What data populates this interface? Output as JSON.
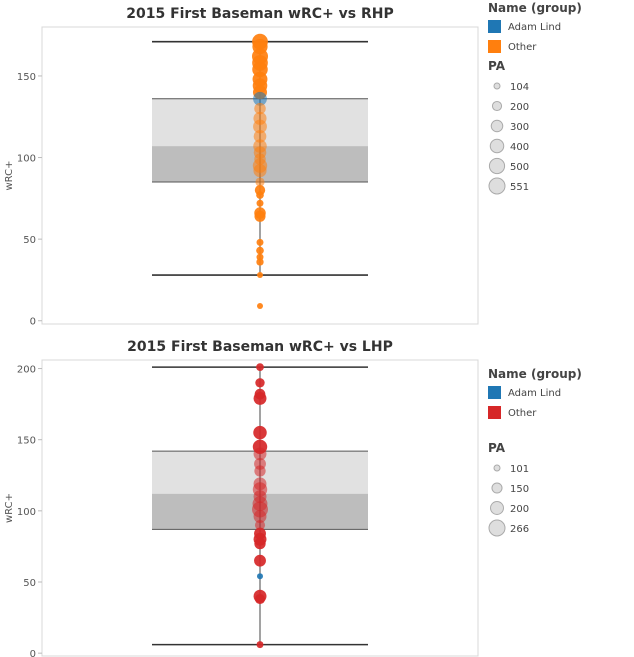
{
  "chart_data": [
    {
      "type": "scatter",
      "subtype": "box-plot with jittered-free points",
      "title": "2015 First Baseman wRC+ vs RHP",
      "xlabel": "",
      "ylabel": "wRC+",
      "ylim": [
        -2,
        180
      ],
      "yticks": [
        0,
        50,
        100,
        150
      ],
      "box": {
        "lower_whisker": 28,
        "q1": 85,
        "median": 107,
        "q3": 136,
        "upper_whisker": 171
      },
      "legend_color_title": "Name (group)",
      "legend_size_title": "PA",
      "groups": [
        {
          "name": "Adam Lind",
          "color": "#1f77b4"
        },
        {
          "name": "Other",
          "color": "#ff7f0e"
        }
      ],
      "size_legend": [
        "104",
        "200",
        "300",
        "400",
        "500",
        "551"
      ],
      "size_legend_values": [
        104,
        200,
        300,
        400,
        500,
        551
      ],
      "points": [
        {
          "group": "Other",
          "wrc": 171,
          "pa": 540
        },
        {
          "group": "Other",
          "wrc": 168,
          "pa": 500
        },
        {
          "group": "Other",
          "wrc": 162,
          "pa": 550
        },
        {
          "group": "Other",
          "wrc": 158,
          "pa": 530
        },
        {
          "group": "Other",
          "wrc": 154,
          "pa": 520
        },
        {
          "group": "Other",
          "wrc": 148,
          "pa": 480
        },
        {
          "group": "Other",
          "wrc": 144,
          "pa": 460
        },
        {
          "group": "Other",
          "wrc": 140,
          "pa": 430
        },
        {
          "group": "Adam Lind",
          "wrc": 136,
          "pa": 420
        },
        {
          "group": "Other",
          "wrc": 130,
          "pa": 300
        },
        {
          "group": "Other",
          "wrc": 124,
          "pa": 380
        },
        {
          "group": "Other",
          "wrc": 119,
          "pa": 420
        },
        {
          "group": "Other",
          "wrc": 113,
          "pa": 360
        },
        {
          "group": "Other",
          "wrc": 107,
          "pa": 400
        },
        {
          "group": "Other",
          "wrc": 103,
          "pa": 350
        },
        {
          "group": "Other",
          "wrc": 99,
          "pa": 300
        },
        {
          "group": "Other",
          "wrc": 95,
          "pa": 450
        },
        {
          "group": "Other",
          "wrc": 92,
          "pa": 380
        },
        {
          "group": "Other",
          "wrc": 85,
          "pa": 200
        },
        {
          "group": "Other",
          "wrc": 80,
          "pa": 250
        },
        {
          "group": "Other",
          "wrc": 77,
          "pa": 150
        },
        {
          "group": "Other",
          "wrc": 72,
          "pa": 130
        },
        {
          "group": "Other",
          "wrc": 66,
          "pa": 300
        },
        {
          "group": "Other",
          "wrc": 64,
          "pa": 280
        },
        {
          "group": "Other",
          "wrc": 48,
          "pa": 130
        },
        {
          "group": "Other",
          "wrc": 43,
          "pa": 150
        },
        {
          "group": "Other",
          "wrc": 39,
          "pa": 130
        },
        {
          "group": "Other",
          "wrc": 36,
          "pa": 140
        },
        {
          "group": "Other",
          "wrc": 28,
          "pa": 104
        },
        {
          "group": "Other",
          "wrc": 9,
          "pa": 104
        }
      ]
    },
    {
      "type": "scatter",
      "subtype": "box-plot with jittered-free points",
      "title": "2015 First Baseman wRC+ vs LHP",
      "xlabel": "",
      "ylabel": "wRC+",
      "ylim": [
        -2,
        206
      ],
      "yticks": [
        0,
        50,
        100,
        150,
        200
      ],
      "box": {
        "lower_whisker": 6,
        "q1": 87,
        "median": 112,
        "q3": 142,
        "upper_whisker": 201
      },
      "legend_color_title": "Name (group)",
      "legend_size_title": "PA",
      "groups": [
        {
          "name": "Adam Lind",
          "color": "#1f77b4"
        },
        {
          "name": "Other",
          "color": "#d62728"
        }
      ],
      "size_legend": [
        "101",
        "150",
        "200",
        "266"
      ],
      "size_legend_values": [
        101,
        150,
        200,
        266
      ],
      "points": [
        {
          "group": "Other",
          "wrc": 201,
          "pa": 120
        },
        {
          "group": "Other",
          "wrc": 190,
          "pa": 140
        },
        {
          "group": "Other",
          "wrc": 182,
          "pa": 160
        },
        {
          "group": "Other",
          "wrc": 179,
          "pa": 200
        },
        {
          "group": "Other",
          "wrc": 155,
          "pa": 210
        },
        {
          "group": "Other",
          "wrc": 145,
          "pa": 230
        },
        {
          "group": "Other",
          "wrc": 140,
          "pa": 200
        },
        {
          "group": "Other",
          "wrc": 133,
          "pa": 180
        },
        {
          "group": "Other",
          "wrc": 128,
          "pa": 170
        },
        {
          "group": "Other",
          "wrc": 119,
          "pa": 200
        },
        {
          "group": "Other",
          "wrc": 115,
          "pa": 230
        },
        {
          "group": "Other",
          "wrc": 110,
          "pa": 200
        },
        {
          "group": "Other",
          "wrc": 105,
          "pa": 240
        },
        {
          "group": "Other",
          "wrc": 101,
          "pa": 266
        },
        {
          "group": "Other",
          "wrc": 96,
          "pa": 200
        },
        {
          "group": "Other",
          "wrc": 90,
          "pa": 150
        },
        {
          "group": "Other",
          "wrc": 84,
          "pa": 180
        },
        {
          "group": "Other",
          "wrc": 80,
          "pa": 200
        },
        {
          "group": "Other",
          "wrc": 77,
          "pa": 170
        },
        {
          "group": "Other",
          "wrc": 65,
          "pa": 180
        },
        {
          "group": "Adam Lind",
          "wrc": 54,
          "pa": 101
        },
        {
          "group": "Other",
          "wrc": 40,
          "pa": 200
        },
        {
          "group": "Other",
          "wrc": 38,
          "pa": 150
        },
        {
          "group": "Other",
          "wrc": 6,
          "pa": 110
        }
      ]
    }
  ]
}
